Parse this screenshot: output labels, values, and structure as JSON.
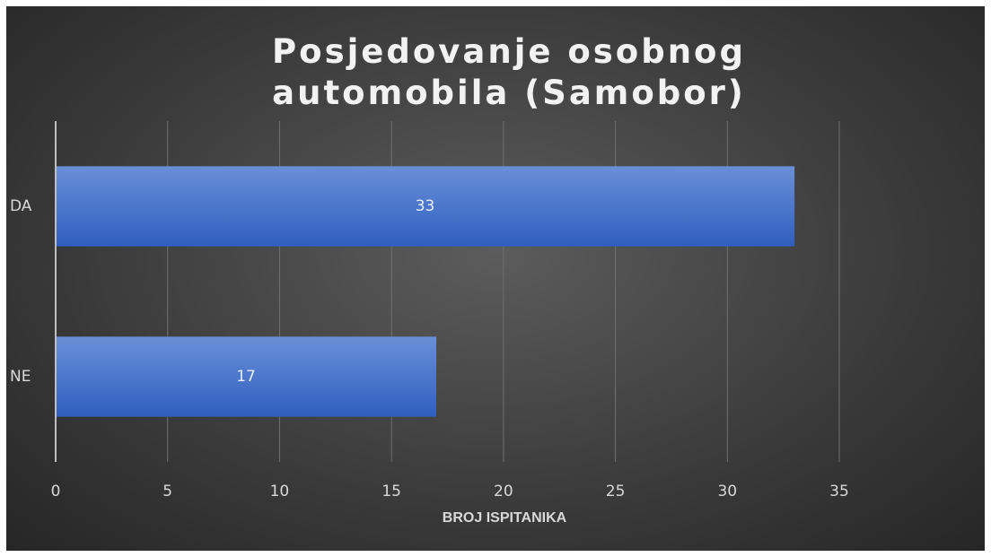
{
  "chart_data": {
    "type": "hbar",
    "title": "Posjedovanje osobnog automobila (Samobor)",
    "categories": [
      "DA",
      "NE"
    ],
    "values": [
      33,
      17
    ],
    "color": "#4472c4",
    "xlabel": "BROJ ISPITANIKA",
    "xlim": [
      0,
      35
    ],
    "xticks": [
      0,
      5,
      10,
      15,
      20,
      25,
      30,
      35
    ],
    "grid": true
  }
}
